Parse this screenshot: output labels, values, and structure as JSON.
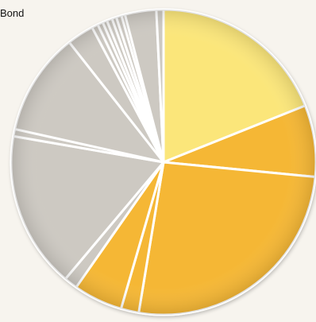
{
  "chart_data": {
    "type": "pie",
    "title": "Bond",
    "start_angle_deg": 0,
    "direction": "clockwise",
    "slices": [
      {
        "value": 20.0,
        "color": "#fbe67a"
      },
      {
        "value": 8.0,
        "color": "#f5b735"
      },
      {
        "value": 27.5,
        "color": "#f5b735"
      },
      {
        "value": 2.0,
        "color": "#f5b735"
      },
      {
        "value": 5.5,
        "color": "#f5b735"
      },
      {
        "value": 1.5,
        "color": "#cdc9c2"
      },
      {
        "value": 17.5,
        "color": "#cdc9c2"
      },
      {
        "value": 0.8,
        "color": "#cdc9c2"
      },
      {
        "value": 11.5,
        "color": "#cdc9c2"
      },
      {
        "value": 3.0,
        "color": "#cdc9c2"
      },
      {
        "value": 0.7,
        "color": "#cdc9c2"
      },
      {
        "value": 0.6,
        "color": "#cdc9c2"
      },
      {
        "value": 0.5,
        "color": "#cdc9c2"
      },
      {
        "value": 0.6,
        "color": "#cdc9c2"
      },
      {
        "value": 0.5,
        "color": "#cdc9c2"
      },
      {
        "value": 0.6,
        "color": "#cdc9c2"
      },
      {
        "value": 0.4,
        "color": "#cdc9c2"
      },
      {
        "value": 3.5,
        "color": "#cdc9c2"
      },
      {
        "value": 0.8,
        "color": "#cdc9c2"
      }
    ]
  }
}
